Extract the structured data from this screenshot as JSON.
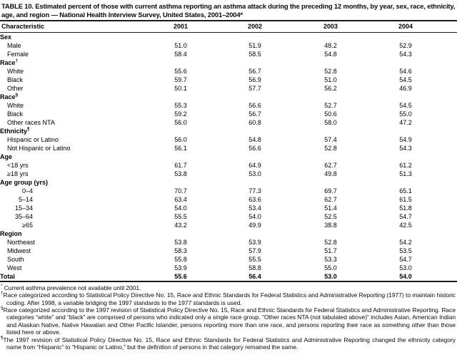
{
  "title": "TABLE 10. Estimated percent of those with current asthma reporting an asthma attack during the preceding 12 months, by year, sex, race, ethnicity, age, and region — National Health Interview Survey, United States, 2001–2004*",
  "table": {
    "columns": [
      "Characteristic",
      "2001",
      "2002",
      "2003",
      "2004"
    ],
    "rows": [
      {
        "label": "Sex",
        "type": "section",
        "values": []
      },
      {
        "label": "Male",
        "type": "item",
        "values": [
          "51.0",
          "51.9",
          "48.2",
          "52.9"
        ]
      },
      {
        "label": "Female",
        "type": "item",
        "values": [
          "58.4",
          "58.5",
          "54.8",
          "54.3"
        ]
      },
      {
        "label": "Race",
        "sup": "†",
        "type": "section",
        "values": []
      },
      {
        "label": "White",
        "type": "item",
        "values": [
          "55.6",
          "56.7",
          "52.8",
          "54.6"
        ]
      },
      {
        "label": "Black",
        "type": "item",
        "values": [
          "59.7",
          "56.9",
          "51.0",
          "54.5"
        ]
      },
      {
        "label": "Other",
        "type": "item",
        "values": [
          "50.1",
          "57.7",
          "56.2",
          "46.9"
        ]
      },
      {
        "label": "Race",
        "sup": "§",
        "type": "section",
        "values": []
      },
      {
        "label": "White",
        "type": "item",
        "values": [
          "55.3",
          "56.6",
          "52.7",
          "54.5"
        ]
      },
      {
        "label": "Black",
        "type": "item",
        "values": [
          "59.2",
          "56.7",
          "50.6",
          "55.0"
        ]
      },
      {
        "label": "Other races NTA",
        "type": "item",
        "values": [
          "56.0",
          "60.8",
          "58.0",
          "47.2"
        ]
      },
      {
        "label": "Ethnicity",
        "sup": "¶",
        "type": "section",
        "values": []
      },
      {
        "label": "Hispanic or Latino",
        "type": "item",
        "values": [
          "56.0",
          "54.8",
          "57.4",
          "54.9"
        ]
      },
      {
        "label": "Not Hispanic or Latino",
        "type": "item",
        "values": [
          "56.1",
          "56.6",
          "52.8",
          "54.3"
        ]
      },
      {
        "label": "Age",
        "type": "section",
        "values": []
      },
      {
        "label": "<18 yrs",
        "type": "item",
        "values": [
          "61.7",
          "64.9",
          "62.7",
          "61.2"
        ]
      },
      {
        "label": "≥18 yrs",
        "type": "item",
        "values": [
          "53.8",
          "53.0",
          "49.8",
          "51.3"
        ]
      },
      {
        "label": "Age group (yrs)",
        "type": "section",
        "values": []
      },
      {
        "label": "0–4",
        "type": "range",
        "values": [
          "70.7",
          "77.3",
          "69.7",
          "65.1"
        ]
      },
      {
        "label": "5–14",
        "type": "range",
        "values": [
          "63.4",
          "63.6",
          "62.7",
          "61.5"
        ]
      },
      {
        "label": "15–34",
        "type": "range",
        "values": [
          "54.0",
          "53.4",
          "51.4",
          "51.8"
        ]
      },
      {
        "label": "35–64",
        "type": "range",
        "values": [
          "55.5",
          "54.0",
          "52.5",
          "54.7"
        ]
      },
      {
        "label": "≥65",
        "type": "range",
        "values": [
          "43.2",
          "49.9",
          "38.8",
          "42.5"
        ]
      },
      {
        "label": "Region",
        "type": "section",
        "values": []
      },
      {
        "label": "Northeast",
        "type": "item",
        "values": [
          "53.8",
          "53.9",
          "52.8",
          "54.2"
        ]
      },
      {
        "label": "Midwest",
        "type": "item",
        "values": [
          "58.3",
          "57.9",
          "51.7",
          "53.5"
        ]
      },
      {
        "label": "South",
        "type": "item",
        "values": [
          "55.8",
          "55.5",
          "53.3",
          "54.7"
        ]
      },
      {
        "label": "West",
        "type": "item",
        "values": [
          "53.9",
          "58.8",
          "55.0",
          "53.0"
        ]
      },
      {
        "label": "Total",
        "type": "total",
        "values": [
          "55.6",
          "56.4",
          "53.0",
          "54.0"
        ]
      }
    ]
  },
  "footnotes": [
    {
      "marker": "*",
      "gap": true,
      "text": "Current asthma prevalence not available until 2001."
    },
    {
      "marker": "†",
      "gap": false,
      "text": "Race categorized according to Statistical Policy Directive No. 15, Race and Ethnic Standards for Federal Statistics and Administrative Reporting (1977) to maintain historic coding. After 1998, a variable bridging the 1997 standards to the 1977 standards is used."
    },
    {
      "marker": "§",
      "gap": false,
      "text": "Race categorized according to the 1997 revision of Statistical Policy Directive No. 15, Race and Ethnic Standards for Federal Statistics and Administrative Reporting. Race categories “white” and “black” are comprised of persons who indicated only a single race group. “Other races NTA (not tabulated above)” includes Asian, American Indian and Alaskan Native, Native Hawaiian and Other Pacific Islander, persons reporting more than one race, and persons reporting their race as something other than those listed here or above."
    },
    {
      "marker": "¶",
      "gap": false,
      "text": "The 1997 revision of Statistical Policy Directive No. 15, Race and Ethnic Standards for Federal Statistics and Administrative Reporting changed the ethnicity category name from “Hispanic” to “Hispanic or Latino,” but the definition of persons in that category remained the same."
    }
  ]
}
